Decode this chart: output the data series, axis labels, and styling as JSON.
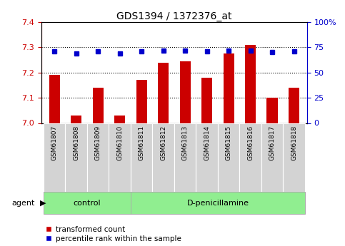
{
  "title": "GDS1394 / 1372376_at",
  "categories": [
    "GSM61807",
    "GSM61808",
    "GSM61809",
    "GSM61810",
    "GSM61811",
    "GSM61812",
    "GSM61813",
    "GSM61814",
    "GSM61815",
    "GSM61816",
    "GSM61817",
    "GSM61818"
  ],
  "red_values": [
    7.19,
    7.03,
    7.14,
    7.03,
    7.17,
    7.24,
    7.245,
    7.18,
    7.275,
    7.31,
    7.1,
    7.14
  ],
  "blue_values": [
    71,
    69,
    71,
    69,
    71,
    71.5,
    71.5,
    71,
    72,
    72,
    70,
    71
  ],
  "ylim_left": [
    7.0,
    7.4
  ],
  "ylim_right": [
    0,
    100
  ],
  "yticks_left": [
    7.0,
    7.1,
    7.2,
    7.3,
    7.4
  ],
  "yticks_right": [
    0,
    25,
    50,
    75,
    100
  ],
  "ytick_labels_right": [
    "0",
    "25",
    "50",
    "75",
    "100%"
  ],
  "bar_color": "#cc0000",
  "dot_color": "#0000cc",
  "grid_yticks": [
    7.1,
    7.2,
    7.3
  ],
  "n_control": 4,
  "control_label": "control",
  "treatment_label": "D-penicillamine",
  "agent_label": "agent",
  "legend_items": [
    "transformed count",
    "percentile rank within the sample"
  ],
  "green_bg": "#90ee90",
  "gray_bg": "#d3d3d3",
  "title_fontsize": 10,
  "tick_fontsize": 8,
  "bar_width": 0.5,
  "figsize": [
    4.83,
    3.45
  ],
  "dpi": 100
}
